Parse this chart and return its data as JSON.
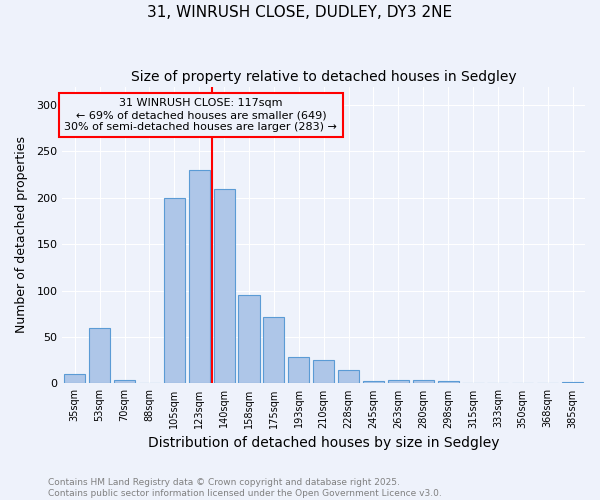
{
  "title": "31, WINRUSH CLOSE, DUDLEY, DY3 2NE",
  "subtitle": "Size of property relative to detached houses in Sedgley",
  "xlabel": "Distribution of detached houses by size in Sedgley",
  "ylabel": "Number of detached properties",
  "categories": [
    "35sqm",
    "53sqm",
    "70sqm",
    "88sqm",
    "105sqm",
    "123sqm",
    "140sqm",
    "158sqm",
    "175sqm",
    "193sqm",
    "210sqm",
    "228sqm",
    "245sqm",
    "263sqm",
    "280sqm",
    "298sqm",
    "315sqm",
    "333sqm",
    "350sqm",
    "368sqm",
    "385sqm"
  ],
  "values": [
    10,
    60,
    4,
    0,
    200,
    230,
    210,
    95,
    72,
    28,
    25,
    14,
    3,
    4,
    4,
    3,
    1,
    1,
    0,
    1,
    2
  ],
  "bar_color": "#aec6e8",
  "bar_edge_color": "#5b9bd5",
  "reference_line_x": 5.5,
  "reference_line_color": "red",
  "annotation_box_text": "31 WINRUSH CLOSE: 117sqm\n← 69% of detached houses are smaller (649)\n30% of semi-detached houses are larger (283) →",
  "annotation_fontsize": 8,
  "ylim": [
    0,
    320
  ],
  "yticks": [
    0,
    50,
    100,
    150,
    200,
    250,
    300
  ],
  "background_color": "#eef2fb",
  "footer_text": "Contains HM Land Registry data © Crown copyright and database right 2025.\nContains public sector information licensed under the Open Government Licence v3.0.",
  "title_fontsize": 11,
  "subtitle_fontsize": 10,
  "xlabel_fontsize": 10,
  "ylabel_fontsize": 9
}
